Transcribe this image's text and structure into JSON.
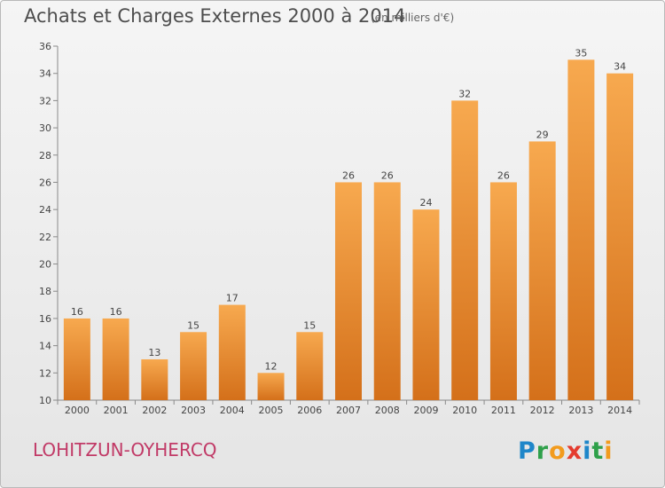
{
  "header": {
    "title": "Achats et Charges Externes 2000 à 2014",
    "subtitle": "(en milliers d'€)"
  },
  "footer": {
    "commune": "LOHITZUN-OYHERCQ",
    "logo_text": "Proxiti"
  },
  "colors": {
    "bar_light": "#f7a94f",
    "bar_dark": "#d4701a",
    "commune": "#c13a67",
    "axis": "#8a8a8a"
  },
  "chart_data": {
    "type": "bar",
    "title": "Achats et Charges Externes 2000 à 2014",
    "subtitle": "(en milliers d'€)",
    "xlabel": "",
    "ylabel": "",
    "ylim": [
      10,
      36
    ],
    "yticks": [
      10,
      12,
      14,
      16,
      18,
      20,
      22,
      24,
      26,
      28,
      30,
      32,
      34,
      36
    ],
    "grid": false,
    "categories": [
      "2000",
      "2001",
      "2002",
      "2003",
      "2004",
      "2005",
      "2006",
      "2007",
      "2008",
      "2009",
      "2010",
      "2011",
      "2012",
      "2013",
      "2014"
    ],
    "values": [
      16,
      16,
      13,
      15,
      17,
      12,
      15,
      26,
      26,
      24,
      32,
      26,
      29,
      35,
      34
    ]
  }
}
